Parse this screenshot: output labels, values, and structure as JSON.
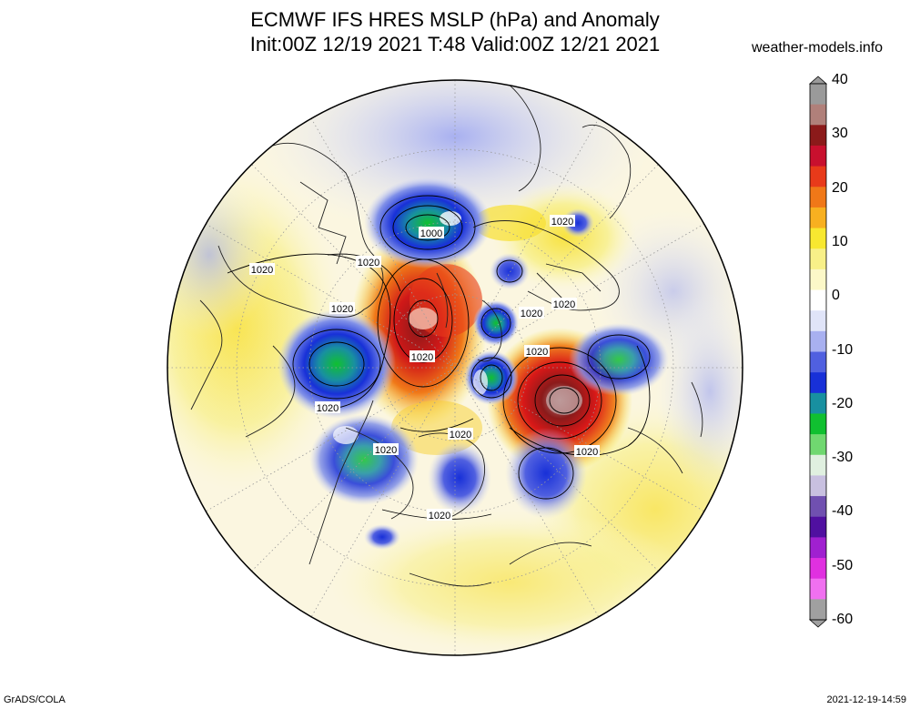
{
  "header": {
    "title_line1": "ECMWF IFS HRES MSLP (hPa) and Anomaly",
    "title_line2": "Init:00Z 12/19 2021 T:48 Valid:00Z 12/21 2021",
    "site": "weather-models.info"
  },
  "footer": {
    "left": "GrADS/COLA",
    "right": "2021-12-19-14:59"
  },
  "colorbar": {
    "labels": [
      "40",
      "30",
      "20",
      "10",
      "0",
      "-10",
      "-20",
      "-30",
      "-40",
      "-50",
      "-60"
    ],
    "colors": [
      "#9a9a9a",
      "#b0807a",
      "#8b1a1a",
      "#c8102e",
      "#e83a1a",
      "#f07818",
      "#f8b020",
      "#f8e830",
      "#f8f088",
      "#fcf8c8",
      "#ffffff",
      "#e0e4f8",
      "#a8b0f0",
      "#5060e0",
      "#1830d8",
      "#1890a0",
      "#10c030",
      "#70d870",
      "#e0f0e0",
      "#c8c0e0",
      "#7050b0",
      "#5010a0",
      "#a020d0",
      "#e030e0",
      "#f070f0",
      "#a0a0a0"
    ]
  },
  "map": {
    "contour_labels": [
      "1000",
      "1020",
      "1020",
      "1020",
      "1020",
      "1020",
      "1020",
      "1020",
      "1020",
      "1020",
      "1020",
      "1020",
      "1020",
      "1020"
    ]
  }
}
